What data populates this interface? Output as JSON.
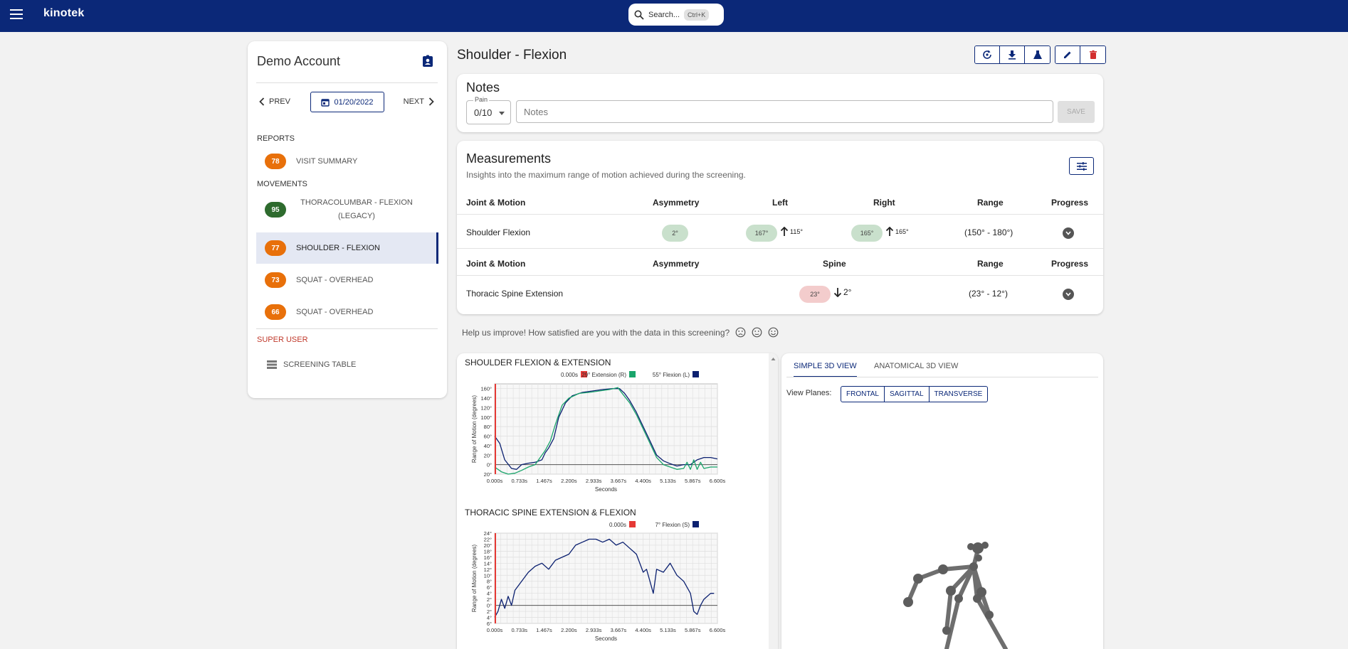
{
  "header": {
    "brand": "kinotek",
    "search_label": "Search...",
    "search_shortcut": "Ctrl+K"
  },
  "sidebar": {
    "account_name": "Demo Account",
    "prev_label": "PREV",
    "next_label": "NEXT",
    "date": "01/20/2022",
    "reports_label": "REPORTS",
    "movements_label": "MOVEMENTS",
    "super_user_label": "SUPER USER",
    "reports": [
      {
        "score": "78",
        "label": "VISIT SUMMARY",
        "color": "#e8700a"
      }
    ],
    "movements": [
      {
        "score": "95",
        "label": "THORACOLUMBAR - FLEXION (LEGACY)",
        "color": "#2e6b2e"
      },
      {
        "score": "77",
        "label": "SHOULDER - FLEXION",
        "color": "#e8700a",
        "active": true
      },
      {
        "score": "73",
        "label": "SQUAT - OVERHEAD",
        "color": "#e8700a"
      },
      {
        "score": "66",
        "label": "SQUAT - OVERHEAD",
        "color": "#e8700a"
      }
    ],
    "super_user_items": [
      {
        "label": "SCREENING TABLE"
      }
    ]
  },
  "main": {
    "title": "Shoulder - Flexion",
    "notes": {
      "title": "Notes",
      "pain_label": "Pain",
      "pain_value": "0/10",
      "placeholder": "Notes",
      "save_label": "SAVE"
    },
    "measurements": {
      "title": "Measurements",
      "subtitle": "Insights into the maximum range of motion achieved during the screening.",
      "table1": {
        "headers": [
          "Joint & Motion",
          "Asymmetry",
          "Left",
          "Right",
          "Range",
          "Progress"
        ],
        "row": {
          "joint": "Shoulder Flexion",
          "asymmetry": "2°",
          "left": "167°",
          "left_delta": "115°",
          "right": "165°",
          "right_delta": "165°",
          "range": "(150° - 180°)"
        }
      },
      "table2": {
        "headers": [
          "Joint & Motion",
          "Asymmetry",
          "Spine",
          "Range",
          "Progress"
        ],
        "row": {
          "joint": "Thoracic Spine Extension",
          "spine": "23°",
          "spine_delta": "2°",
          "range": "(23° - 12°)"
        }
      }
    },
    "feedback_text": "Help us improve! How satisfied are you with the data in this screening?"
  },
  "chart_data": [
    {
      "type": "line",
      "title": "SHOULDER FLEXION & EXTENSION",
      "xlabel": "Seconds",
      "ylabel": "Range of Motion (degrees)",
      "xlim": [
        0,
        6.6
      ],
      "ylim": [
        -20,
        170
      ],
      "x_tick_labels": [
        "0.000s",
        "0.733s",
        "1.467s",
        "2.200s",
        "2.933s",
        "3.667s",
        "4.400s",
        "5.133s",
        "5.867s",
        "6.600s"
      ],
      "y_tick_labels": [
        "160°",
        "140°",
        "120°",
        "100°",
        "80°",
        "60°",
        "40°",
        "20°",
        "0°",
        "20°"
      ],
      "y_tick_values": [
        160,
        140,
        120,
        100,
        80,
        60,
        40,
        20,
        0,
        -20
      ],
      "legend": [
        {
          "label": "0.000s",
          "color": "#e53935"
        },
        {
          "label": "29° Extension (R)",
          "color": "#1aa56b"
        },
        {
          "label": "55° Flexion (L)",
          "color": "#0b2070"
        }
      ],
      "series": [
        {
          "name": "55° Flexion (L)",
          "color": "#0b2070",
          "x": [
            0,
            0.15,
            0.3,
            0.5,
            0.65,
            0.8,
            1.0,
            1.2,
            1.4,
            1.5,
            1.6,
            1.75,
            1.9,
            2.1,
            2.3,
            2.6,
            2.9,
            3.2,
            3.5,
            3.7,
            3.85,
            4.0,
            4.2,
            4.4,
            4.6,
            4.8,
            5.0,
            5.2,
            5.4,
            5.6,
            5.8,
            6.0,
            6.2,
            6.4,
            6.6
          ],
          "y": [
            60,
            45,
            10,
            -8,
            -10,
            0,
            3,
            5,
            10,
            25,
            35,
            55,
            100,
            130,
            145,
            152,
            155,
            158,
            160,
            160,
            150,
            135,
            110,
            80,
            50,
            20,
            8,
            2,
            -3,
            0,
            0,
            10,
            15,
            15,
            12
          ]
        },
        {
          "name": "29° Extension (R)",
          "color": "#1aa56b",
          "x": [
            0,
            0.2,
            0.4,
            0.6,
            0.8,
            1.0,
            1.2,
            1.4,
            1.5,
            1.65,
            1.8,
            2.0,
            2.2,
            2.5,
            2.8,
            3.1,
            3.4,
            3.65,
            3.8,
            4.0,
            4.2,
            4.4,
            4.6,
            4.8,
            5.0,
            5.2,
            5.4,
            5.6,
            5.7,
            5.8,
            5.9,
            6.0,
            6.1,
            6.2,
            6.4,
            6.6
          ],
          "y": [
            -5,
            -15,
            -20,
            -18,
            -12,
            -5,
            0,
            20,
            30,
            50,
            85,
            125,
            140,
            150,
            152,
            155,
            158,
            162,
            148,
            130,
            105,
            75,
            45,
            15,
            0,
            -5,
            -10,
            -8,
            5,
            -10,
            10,
            -10,
            5,
            -8,
            -5,
            -5
          ]
        }
      ]
    },
    {
      "type": "line",
      "title": "THORACIC SPINE EXTENSION & FLEXION",
      "xlabel": "Seconds",
      "ylabel": "Range of Motion (degrees)",
      "xlim": [
        0,
        6.6
      ],
      "ylim": [
        -6,
        24
      ],
      "x_tick_labels": [
        "0.000s",
        "0.733s",
        "1.467s",
        "2.200s",
        "2.933s",
        "3.667s",
        "4.400s",
        "5.133s",
        "5.867s",
        "6.600s"
      ],
      "y_tick_labels": [
        "24°",
        "22°",
        "20°",
        "18°",
        "16°",
        "14°",
        "12°",
        "10°",
        "8°",
        "6°",
        "4°",
        "2°",
        "0°",
        "2°",
        "4°",
        "6°"
      ],
      "y_tick_values": [
        24,
        22,
        20,
        18,
        16,
        14,
        12,
        10,
        8,
        6,
        4,
        2,
        0,
        -2,
        -4,
        -6
      ],
      "legend": [
        {
          "label": "0.000s",
          "color": "#e53935"
        },
        {
          "label": "7° Flexion (S)",
          "color": "#0b2070"
        }
      ],
      "series": [
        {
          "name": "7° Flexion (S)",
          "color": "#0b2070",
          "x": [
            0,
            0.1,
            0.2,
            0.3,
            0.4,
            0.5,
            0.6,
            0.8,
            1.0,
            1.2,
            1.4,
            1.6,
            1.8,
            2.0,
            2.2,
            2.4,
            2.6,
            2.8,
            3.0,
            3.2,
            3.4,
            3.6,
            3.8,
            4.0,
            4.2,
            4.4,
            4.5,
            4.6,
            4.7,
            4.8,
            5.0,
            5.2,
            5.4,
            5.6,
            5.8,
            5.9,
            6.0,
            6.1,
            6.2,
            6.3,
            6.4,
            6.5
          ],
          "y": [
            -4,
            -2,
            2,
            -1,
            3,
            0,
            5,
            8,
            11,
            13,
            14,
            12,
            15,
            16,
            17,
            20,
            21,
            22,
            22,
            21,
            22,
            20,
            21,
            19,
            17,
            11,
            12,
            8,
            4,
            12,
            11,
            14,
            10,
            8,
            4,
            -2,
            -3,
            0,
            2,
            3,
            4,
            4
          ]
        }
      ]
    }
  ],
  "viewer": {
    "tabs": [
      "SIMPLE 3D VIEW",
      "ANATOMICAL 3D VIEW"
    ],
    "view_planes_label": "View Planes:",
    "planes": [
      "FRONTAL",
      "SAGITTAL",
      "TRANSVERSE"
    ]
  },
  "icons": [
    "menu-icon",
    "search-icon",
    "badge-icon",
    "chevron-left-icon",
    "calendar-icon",
    "chevron-right-icon",
    "list-icon",
    "refresh-icon",
    "download-icon",
    "flask-icon",
    "edit-icon",
    "trash-icon",
    "tune-icon",
    "arrow-up-icon",
    "arrow-down-icon",
    "chevron-down-icon",
    "face-icon"
  ],
  "colors": {
    "brand": "#0b2878",
    "orange": "#e8700a",
    "green": "#2e6b2e",
    "danger": "#d32f2f"
  }
}
